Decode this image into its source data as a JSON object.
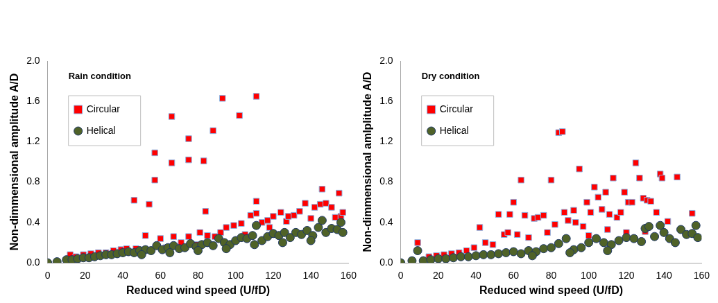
{
  "chart_data": [
    {
      "type": "scatter",
      "annotations": [
        "Rain condition"
      ],
      "xlabel": "Reduced wind speed (U/fD)",
      "ylabel": "Non-dimmensional amplitude A/D",
      "xlim": [
        0,
        160
      ],
      "xticks": [
        0,
        20,
        40,
        60,
        80,
        100,
        120,
        140,
        160
      ],
      "ylim": [
        0,
        2
      ],
      "yticks": [
        {
          "value": 0,
          "label": "0.0"
        },
        {
          "value": 0.4,
          "label": "0.4"
        },
        {
          "value": 0.8,
          "label": "0.8"
        },
        {
          "value": 1.2,
          "label": "1.2"
        },
        {
          "value": 1.6,
          "label": "1.6"
        },
        {
          "value": 2,
          "label": "2.0"
        }
      ],
      "grid": false,
      "legend": "top left",
      "series": [
        {
          "name": "Circular",
          "color": "#ff0000",
          "marker": "square",
          "x": [
            46,
            54,
            57,
            57,
            66,
            66,
            75,
            75,
            83,
            84,
            88,
            93,
            102,
            111,
            111,
            146,
            155,
            12,
            15,
            19,
            23,
            27,
            31,
            35,
            39,
            42,
            47,
            52,
            55,
            60,
            63,
            67,
            71,
            75,
            79,
            81,
            85,
            89,
            92,
            95,
            99,
            103,
            105,
            108,
            111,
            114,
            117,
            120,
            124,
            127,
            131,
            134,
            137,
            140,
            142,
            145,
            148,
            151,
            153,
            156,
            157,
            128,
            118
          ],
          "values": [
            0.62,
            0.58,
            1.09,
            0.82,
            0.99,
            1.45,
            1.23,
            1.02,
            1.01,
            0.51,
            1.31,
            1.63,
            1.46,
            1.65,
            0.61,
            0.73,
            0.69,
            0.08,
            0.06,
            0.08,
            0.09,
            0.1,
            0.1,
            0.12,
            0.13,
            0.14,
            0.14,
            0.27,
            null,
            0.24,
            0.15,
            0.26,
            0.2,
            0.26,
            0.18,
            0.3,
            0.27,
            0.26,
            0.3,
            0.35,
            0.37,
            0.39,
            0.28,
            0.47,
            0.49,
            0.4,
            0.42,
            0.46,
            0.5,
            0.41,
            0.47,
            0.51,
            0.59,
            0.44,
            0.55,
            0.58,
            0.59,
            0.55,
            0.45,
            0.46,
            0.5,
            0.46,
            0.35
          ]
        },
        {
          "name": "Helical",
          "color": "#4f6228",
          "marker": "circle",
          "x": [
            0,
            5,
            10,
            13,
            16,
            19,
            22,
            25,
            28,
            31,
            34,
            37,
            40,
            43,
            46,
            49,
            52,
            55,
            58,
            61,
            64,
            67,
            70,
            73,
            76,
            79,
            82,
            85,
            88,
            91,
            94,
            97,
            100,
            103,
            106,
            109,
            111,
            114,
            117,
            120,
            123,
            126,
            129,
            132,
            135,
            138,
            141,
            144,
            146,
            148,
            151,
            154,
            156,
            157,
            140,
            125,
            110,
            95,
            80,
            65,
            50
          ],
          "values": [
            0,
            0.01,
            0.03,
            0.03,
            0.04,
            0.05,
            0.05,
            0.06,
            0.07,
            0.08,
            0.08,
            0.09,
            0.1,
            0.11,
            0.1,
            0.12,
            0.13,
            0.12,
            0.17,
            0.13,
            0.15,
            0.17,
            0.14,
            0.15,
            0.19,
            0.16,
            0.18,
            0.2,
            0.17,
            0.24,
            0.2,
            0.18,
            0.22,
            0.25,
            0.24,
            0.27,
            0.37,
            0.22,
            0.26,
            0.29,
            0.27,
            0.3,
            0.25,
            0.3,
            0.28,
            0.32,
            0.27,
            0.35,
            0.42,
            0.3,
            0.34,
            0.33,
            0.4,
            0.3,
            0.22,
            0.2,
            0.18,
            0.14,
            0.12,
            0.1,
            0.08
          ]
        }
      ]
    },
    {
      "type": "scatter",
      "annotations": [
        "Dry condition"
      ],
      "xlabel": "Reduced wind speed (U/fD)",
      "ylabel": "Non-dimmensional amlplitude A/D",
      "xlim": [
        0,
        160
      ],
      "xticks": [
        0,
        20,
        40,
        60,
        80,
        100,
        120,
        140,
        160
      ],
      "ylim": [
        0,
        2
      ],
      "yticks": [
        {
          "value": 0,
          "label": "0.0"
        },
        {
          "value": 0.4,
          "label": "0.4"
        },
        {
          "value": 0.8,
          "label": "0.8"
        },
        {
          "value": 1.2,
          "label": "1.2"
        },
        {
          "value": 1.6,
          "label": "1.6"
        },
        {
          "value": 2,
          "label": "2.0"
        }
      ],
      "grid": false,
      "legend": "top left",
      "series": [
        {
          "name": "Circular",
          "color": "#ff0000",
          "marker": "square",
          "x": [
            9,
            15,
            19,
            23,
            27,
            31,
            35,
            39,
            42,
            45,
            49,
            52,
            55,
            57,
            58,
            60,
            62,
            64,
            66,
            68,
            71,
            73,
            76,
            78,
            80,
            82,
            84,
            86,
            87,
            89,
            92,
            93,
            95,
            97,
            99,
            101,
            103,
            105,
            107,
            109,
            111,
            113,
            115,
            117,
            119,
            121,
            123,
            125,
            127,
            129,
            131,
            133,
            136,
            138,
            139,
            142,
            147,
            155,
            120,
            100,
            110,
            130
          ],
          "values": [
            0.2,
            0.06,
            0.07,
            0.08,
            0.09,
            0.1,
            0.12,
            0.15,
            0.35,
            0.2,
            0.18,
            0.48,
            0.28,
            0.3,
            0.48,
            0.6,
            0.28,
            0.82,
            0.47,
            0.25,
            0.44,
            0.45,
            0.47,
            0.3,
            0.82,
            0.38,
            1.29,
            1.3,
            0.5,
            0.42,
            0.52,
            0.4,
            0.93,
            0.36,
            0.6,
            0.5,
            0.75,
            0.65,
            0.53,
            0.7,
            0.48,
            0.84,
            0.45,
            0.5,
            0.7,
            0.6,
            0.6,
            0.99,
            0.84,
            0.64,
            0.62,
            0.61,
            0.5,
            0.88,
            0.84,
            0.41,
            0.85,
            0.49,
            0.3,
            0.27,
            0.33,
            0.31
          ]
        },
        {
          "name": "Helical",
          "color": "#4f6228",
          "marker": "circle",
          "x": [
            0,
            6,
            9,
            12,
            16,
            20,
            24,
            28,
            32,
            36,
            40,
            44,
            48,
            52,
            56,
            60,
            64,
            68,
            72,
            76,
            80,
            84,
            88,
            92,
            96,
            100,
            104,
            108,
            112,
            116,
            120,
            124,
            128,
            130,
            132,
            135,
            138,
            140,
            143,
            146,
            149,
            152,
            155,
            157,
            158,
            110,
            90,
            70
          ],
          "values": [
            0,
            0.02,
            0.12,
            0.02,
            0.03,
            0.04,
            0.04,
            0.05,
            0.06,
            0.06,
            0.07,
            0.08,
            0.08,
            0.09,
            0.1,
            0.11,
            0.09,
            0.12,
            0.11,
            0.14,
            0.15,
            0.19,
            0.24,
            0.13,
            0.15,
            0.2,
            0.24,
            0.2,
            0.18,
            0.22,
            0.25,
            0.24,
            0.21,
            0.34,
            0.36,
            0.26,
            0.37,
            0.3,
            0.24,
            0.2,
            0.33,
            0.28,
            0.29,
            0.37,
            0.25,
            0.12,
            0.1,
            0.07
          ]
        }
      ]
    }
  ]
}
